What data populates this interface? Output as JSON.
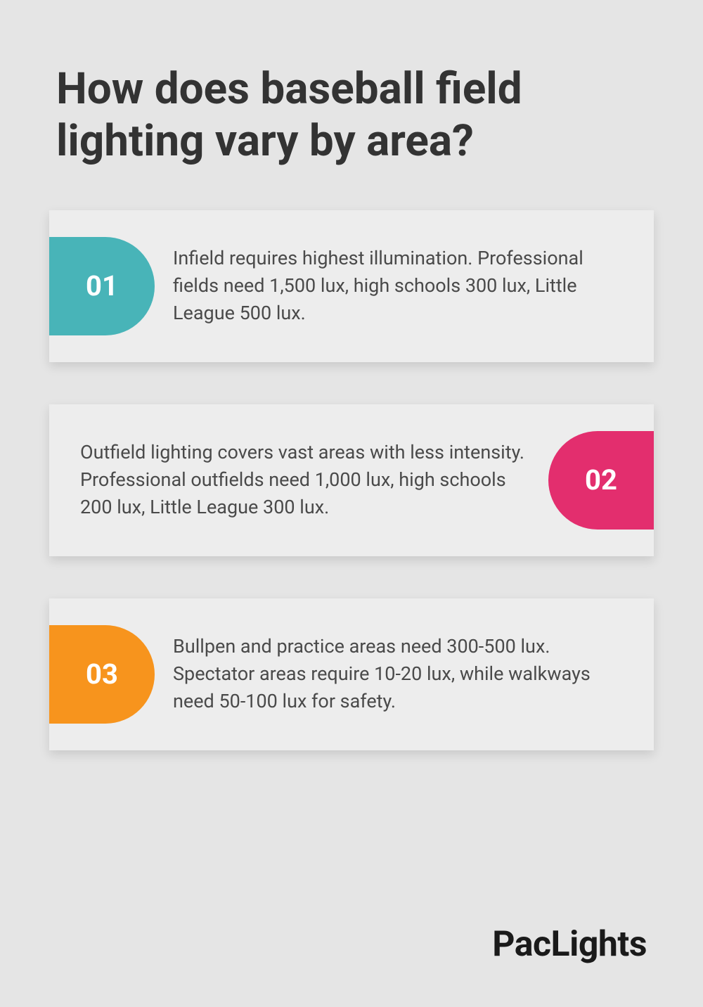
{
  "title": "How does baseball field lighting vary by area?",
  "background_color": "#e5e5e5",
  "card_background": "#ededed",
  "text_color": "#4a4a4a",
  "title_color": "#333333",
  "title_fontsize": 62,
  "body_fontsize": 27,
  "badge_fontsize": 40,
  "cards": [
    {
      "number": "01",
      "text": "Infield requires highest illumination. Professional fields need 1,500 lux, high schools 300 lux, Little League 500 lux.",
      "badge_color": "#48b4b8",
      "badge_side": "left"
    },
    {
      "number": "02",
      "text": "Outfield lighting covers vast areas with less intensity. Professional outfields need 1,000 lux, high schools 200 lux, Little League 300 lux.",
      "badge_color": "#e32e6e",
      "badge_side": "right"
    },
    {
      "number": "03",
      "text": "Bullpen and practice areas need 300-500 lux. Spectator areas require 10-20 lux, while walkways need 50-100 lux for safety.",
      "badge_color": "#f7941d",
      "badge_side": "left"
    }
  ],
  "brand": "PacLights",
  "brand_color": "#1a1a1a",
  "brand_fontsize": 50
}
